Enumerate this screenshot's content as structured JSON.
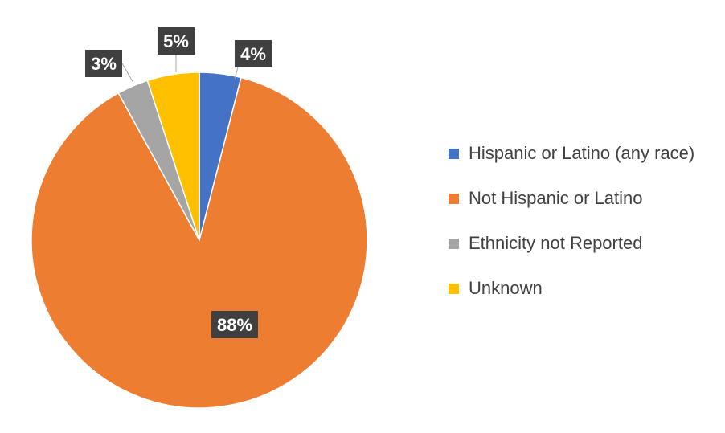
{
  "chart_data": {
    "type": "pie",
    "title": "",
    "categories": [
      "Hispanic or Latino (any race)",
      "Not Hispanic or Latino",
      "Ethnicity not Reported",
      "Unknown"
    ],
    "values": [
      4,
      88,
      3,
      5
    ],
    "data_labels": [
      "4%",
      "88%",
      "3%",
      "5%"
    ],
    "colors": [
      "#4472C4",
      "#ED7D31",
      "#A5A5A5",
      "#FFC000"
    ],
    "legend_position": "right",
    "start_angle_deg": 0,
    "direction": "clockwise"
  }
}
